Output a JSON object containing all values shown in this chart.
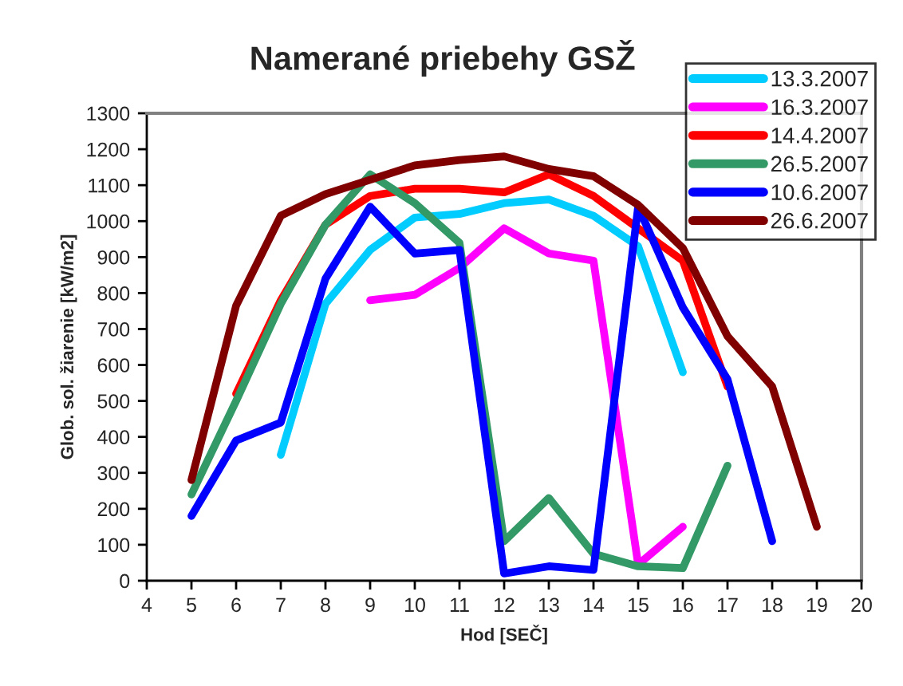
{
  "chart_data": {
    "type": "line",
    "title": "Namerané priebehy GSŽ",
    "xlabel": "Hod [SEČ]",
    "ylabel": "Glob. sol. žiarenie [kW/m2]",
    "xlim": [
      4,
      20
    ],
    "xticks": [
      4,
      5,
      6,
      7,
      8,
      9,
      10,
      11,
      12,
      13,
      14,
      15,
      16,
      17,
      18,
      19,
      20
    ],
    "ylim": [
      0,
      1300
    ],
    "yticks": [
      0,
      100,
      200,
      300,
      400,
      500,
      600,
      700,
      800,
      900,
      1000,
      1100,
      1200,
      1300
    ],
    "grid": false,
    "legend": "top right",
    "marker": "none",
    "line_style": "solid",
    "series": [
      {
        "name": "13.3.2007",
        "color": "#00ccff",
        "x": [
          7,
          8,
          9,
          10,
          11,
          12,
          13,
          14,
          15,
          16
        ],
        "values": [
          350,
          770,
          920,
          1010,
          1020,
          1050,
          1060,
          1015,
          930,
          580
        ]
      },
      {
        "name": "16.3.2007",
        "color": "#ff00ff",
        "x": [
          9,
          10,
          11,
          12,
          13,
          14,
          15,
          16
        ],
        "values": [
          780,
          795,
          870,
          980,
          910,
          890,
          45,
          150
        ]
      },
      {
        "name": "14.4.2007",
        "color": "#ff0000",
        "x": [
          6,
          7,
          8,
          9,
          10,
          11,
          12,
          13,
          14,
          15,
          16,
          17
        ],
        "values": [
          520,
          780,
          990,
          1070,
          1090,
          1090,
          1080,
          1130,
          1070,
          980,
          890,
          540
        ]
      },
      {
        "name": "26.5.2007",
        "color": "#339966",
        "x": [
          5,
          6,
          7,
          8,
          9,
          10,
          11,
          12,
          13,
          14,
          15,
          16,
          17
        ],
        "values": [
          240,
          500,
          770,
          990,
          1130,
          1050,
          940,
          110,
          230,
          75,
          40,
          35,
          320
        ]
      },
      {
        "name": "10.6.2007",
        "color": "#0000ff",
        "x": [
          5,
          6,
          7,
          8,
          9,
          10,
          11,
          12,
          13,
          14,
          15,
          16,
          17,
          18
        ],
        "values": [
          180,
          390,
          440,
          840,
          1040,
          910,
          920,
          20,
          40,
          30,
          1040,
          760,
          560,
          110
        ]
      },
      {
        "name": "26.6.2007",
        "color": "#800000",
        "x": [
          5,
          6,
          7,
          8,
          9,
          10,
          11,
          12,
          13,
          14,
          15,
          16,
          17,
          18,
          19
        ],
        "values": [
          280,
          765,
          1015,
          1075,
          1115,
          1155,
          1170,
          1180,
          1145,
          1125,
          1045,
          925,
          680,
          540,
          150
        ]
      }
    ]
  }
}
